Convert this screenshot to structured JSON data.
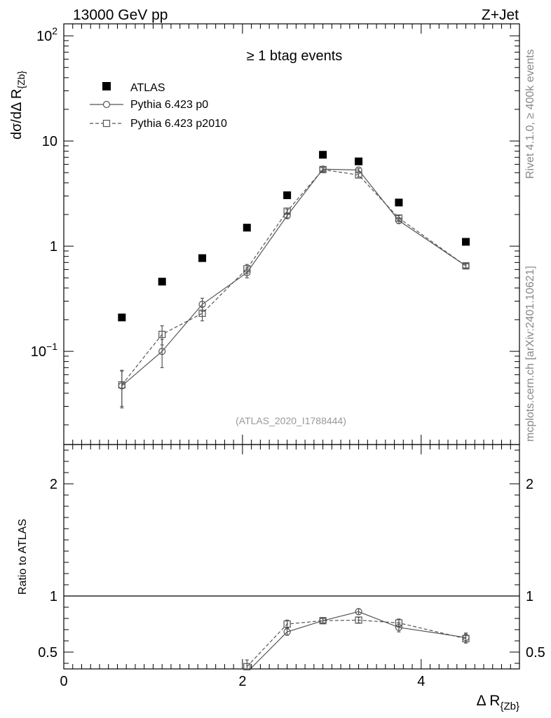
{
  "header": {
    "left": "13000 GeV pp",
    "right": "Z+Jet"
  },
  "side_labels": {
    "rivet": "Rivet 4.1.0, ≥ 400k events",
    "mcplots": "mcplots.cern.ch [arXiv:2401.10621]"
  },
  "colors": {
    "data": "#000000",
    "mc": "#555555",
    "side_text": "#888888",
    "analysis_text": "#999999"
  },
  "chart_data": [
    {
      "type": "scatter",
      "panel": "main",
      "title": "≥ 1 btag events",
      "analysis_id": "(ATLAS_2020_I1788444)",
      "ylabel": "dσ/dΔ R",
      "ylabel_sub": "{Zb}",
      "yscale": "log",
      "ylim": [
        0.013,
        130
      ],
      "xlim": [
        0,
        5.1
      ],
      "y_ticks": [
        {
          "value": 100,
          "base": "10",
          "exp": "2"
        },
        {
          "value": 10,
          "base": "10",
          "exp": ""
        },
        {
          "value": 1,
          "base": "1",
          "exp": ""
        },
        {
          "value": 0.1,
          "base": "10",
          "exp": "−1"
        }
      ],
      "legend": {
        "position": "top-left",
        "entries": [
          "ATLAS",
          "Pythia 6.423 p0",
          "Pythia 6.423 p2010"
        ]
      },
      "series": [
        {
          "name": "ATLAS",
          "marker": "filled-square",
          "x": [
            0.65,
            1.1,
            1.55,
            2.05,
            2.5,
            2.9,
            3.3,
            3.75,
            4.5
          ],
          "values": [
            0.21,
            0.46,
            0.77,
            1.5,
            3.05,
            7.4,
            6.4,
            2.6,
            1.1
          ]
        },
        {
          "name": "Pythia 6.423 p0",
          "marker": "open-circle",
          "line": "solid",
          "x": [
            0.65,
            1.1,
            1.55,
            2.05,
            2.5,
            2.9,
            3.3,
            3.75,
            4.5
          ],
          "values": [
            0.047,
            0.1,
            0.28,
            0.56,
            1.95,
            5.4,
            5.3,
            1.75,
            0.65
          ],
          "err": [
            0.018,
            0.03,
            0.04,
            0.06,
            0.1,
            0.2,
            0.2,
            0.1,
            0.03
          ]
        },
        {
          "name": "Pythia 6.423 p2010",
          "marker": "open-square",
          "line": "dashed",
          "x": [
            0.65,
            1.1,
            1.55,
            2.05,
            2.5,
            2.9,
            3.3,
            3.75,
            4.5
          ],
          "values": [
            0.048,
            0.145,
            0.23,
            0.61,
            2.15,
            5.35,
            4.75,
            1.85,
            0.65
          ],
          "err": [
            0.018,
            0.03,
            0.035,
            0.06,
            0.1,
            0.2,
            0.2,
            0.1,
            0.03
          ]
        }
      ]
    },
    {
      "type": "scatter",
      "panel": "ratio",
      "ylabel": "Ratio to ATLAS",
      "xlabel": "Δ R",
      "xlabel_sub": "{Zb}",
      "ylim": [
        0.35,
        2.35
      ],
      "xlim": [
        0,
        5.1
      ],
      "reference_line": 1,
      "y_ticks": [
        0.5,
        1,
        2
      ],
      "y_tick_labels": [
        "0.5",
        "1",
        "2"
      ],
      "x_ticks": [
        0,
        2,
        4
      ],
      "x_tick_labels": [
        "0",
        "2",
        "4"
      ],
      "series": [
        {
          "name": "Pythia 6.423 p0",
          "marker": "open-circle",
          "line": "solid",
          "x": [
            2.05,
            2.5,
            2.9,
            3.3,
            3.75,
            4.5
          ],
          "values": [
            0.32,
            0.68,
            0.78,
            0.86,
            0.72,
            0.63
          ],
          "err": [
            0.03,
            0.03,
            0.025,
            0.025,
            0.04,
            0.04
          ]
        },
        {
          "name": "Pythia 6.423 p2010",
          "marker": "open-square",
          "line": "dashed",
          "x": [
            2.05,
            2.5,
            2.9,
            3.3,
            3.75,
            4.5
          ],
          "values": [
            0.37,
            0.75,
            0.78,
            0.785,
            0.76,
            0.62
          ],
          "err": [
            0.06,
            0.035,
            0.02,
            0.025,
            0.035,
            0.04
          ]
        }
      ]
    }
  ]
}
